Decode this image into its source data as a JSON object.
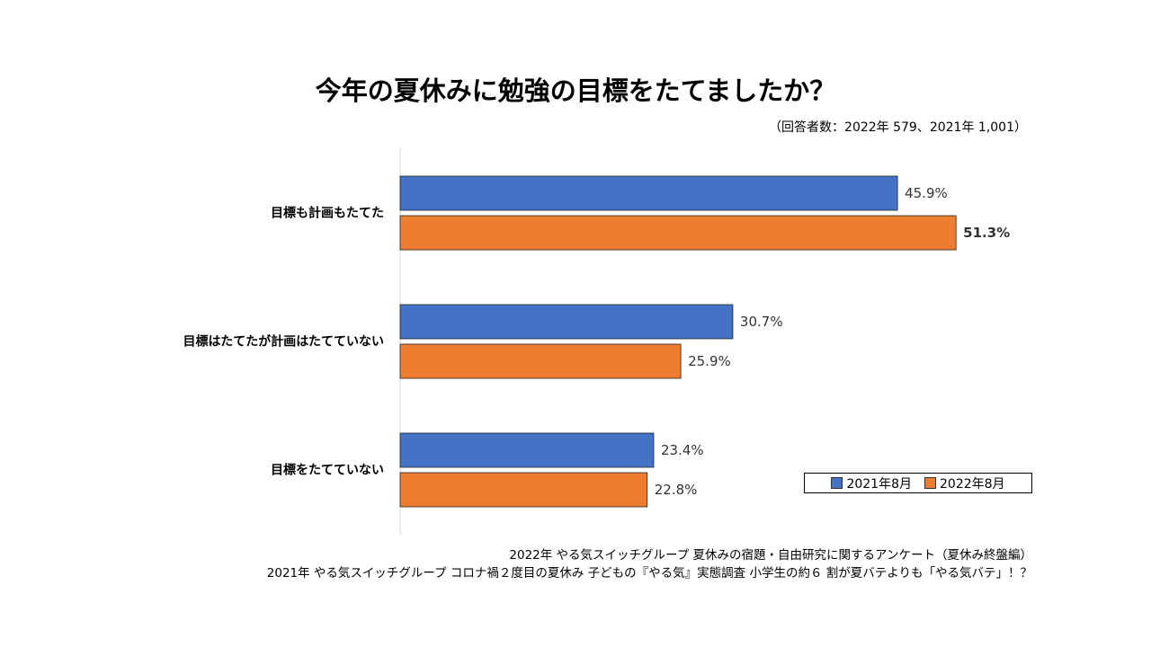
{
  "chart_data": {
    "type": "bar",
    "orientation": "horizontal",
    "title": "今年の夏休みに勉強の目標をたてましたか？",
    "subtitle": "（回答者数：2022年 579、2021年 1,001）",
    "categories": [
      "目標も計画もたてた",
      "目標はたてたが計画はたてていない",
      "目標をたてていない"
    ],
    "series": [
      {
        "name": "2021年8月",
        "color": "#4472C4",
        "values": [
          45.9,
          30.7,
          23.4
        ],
        "labels": [
          "45.9%",
          "30.7%",
          "23.4%"
        ]
      },
      {
        "name": "2022年8月",
        "color": "#ED7D31",
        "values": [
          51.3,
          25.9,
          22.8
        ],
        "labels": [
          "51.3%",
          "25.9%",
          "22.8%"
        ]
      }
    ],
    "bold_labels": [
      "51.3%"
    ],
    "unit": "%",
    "grid": false,
    "legend_position": "bottom-right"
  },
  "sources": [
    "2022年 やる気スイッチグループ 夏休みの宿題・自由研究に関するアンケート（夏休み終盤編）",
    "2021年 やる気スイッチグループ コロナ禍２度目の夏休み 子どもの『やる気』実態調査 小学生の約６ 割が夏バテよりも「やる気バテ」！？"
  ]
}
